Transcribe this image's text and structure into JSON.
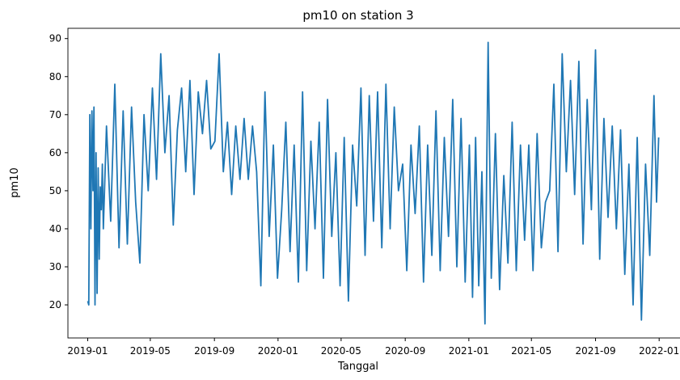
{
  "chart_data": {
    "type": "line",
    "title": "pm10 on station 3",
    "xlabel": "Tanggal",
    "ylabel": "pm10",
    "xlim": [
      "2018-11-24",
      "2022-02-10"
    ],
    "ylim": [
      11.3,
      92.7
    ],
    "grid": false,
    "x_ticks": [
      "2019-01",
      "2019-05",
      "2019-09",
      "2020-01",
      "2020-05",
      "2020-09",
      "2021-01",
      "2021-05",
      "2021-09",
      "2022-01"
    ],
    "y_ticks": [
      20,
      30,
      40,
      50,
      60,
      70,
      80,
      90
    ],
    "series": [
      {
        "color": "#1f77b4",
        "x": [
          "2019-01-01",
          "2019-01-03",
          "2019-01-05",
          "2019-01-07",
          "2019-01-09",
          "2019-01-11",
          "2019-01-13",
          "2019-01-15",
          "2019-01-17",
          "2019-01-19",
          "2019-01-21",
          "2019-01-23",
          "2019-01-25",
          "2019-01-27",
          "2019-01-29",
          "2019-01-31",
          "2019-02-06",
          "2019-02-14",
          "2019-02-22",
          "2019-03-02",
          "2019-03-10",
          "2019-03-18",
          "2019-03-26",
          "2019-04-03",
          "2019-04-11",
          "2019-04-19",
          "2019-04-27",
          "2019-05-05",
          "2019-05-13",
          "2019-05-21",
          "2019-05-29",
          "2019-06-06",
          "2019-06-14",
          "2019-06-22",
          "2019-06-30",
          "2019-07-08",
          "2019-07-16",
          "2019-07-24",
          "2019-08-01",
          "2019-08-09",
          "2019-08-17",
          "2019-08-25",
          "2019-09-02",
          "2019-09-10",
          "2019-09-18",
          "2019-09-26",
          "2019-10-04",
          "2019-10-12",
          "2019-10-20",
          "2019-10-28",
          "2019-11-05",
          "2019-11-13",
          "2019-11-21",
          "2019-11-29",
          "2019-12-07",
          "2019-12-15",
          "2019-12-23",
          "2019-12-31",
          "2020-01-08",
          "2020-01-16",
          "2020-01-24",
          "2020-02-01",
          "2020-02-09",
          "2020-02-17",
          "2020-02-25",
          "2020-03-04",
          "2020-03-12",
          "2020-03-20",
          "2020-03-28",
          "2020-04-05",
          "2020-04-13",
          "2020-04-21",
          "2020-04-29",
          "2020-05-07",
          "2020-05-15",
          "2020-05-23",
          "2020-05-31",
          "2020-06-08",
          "2020-06-16",
          "2020-06-24",
          "2020-07-02",
          "2020-07-10",
          "2020-07-18",
          "2020-07-26",
          "2020-08-03",
          "2020-08-11",
          "2020-08-19",
          "2020-08-27",
          "2020-09-04",
          "2020-09-12",
          "2020-09-20",
          "2020-09-28",
          "2020-10-06",
          "2020-10-14",
          "2020-10-22",
          "2020-10-30",
          "2020-11-07",
          "2020-11-15",
          "2020-11-23",
          "2020-12-01",
          "2020-12-09",
          "2020-12-17",
          "2020-12-25",
          "2021-01-02",
          "2021-01-08",
          "2021-01-14",
          "2021-01-20",
          "2021-01-26",
          "2021-02-01",
          "2021-02-07",
          "2021-02-13",
          "2021-02-21",
          "2021-03-01",
          "2021-03-09",
          "2021-03-17",
          "2021-03-25",
          "2021-04-02",
          "2021-04-10",
          "2021-04-18",
          "2021-04-26",
          "2021-05-04",
          "2021-05-12",
          "2021-05-20",
          "2021-05-28",
          "2021-06-05",
          "2021-06-13",
          "2021-06-21",
          "2021-06-29",
          "2021-07-07",
          "2021-07-15",
          "2021-07-23",
          "2021-07-31",
          "2021-08-08",
          "2021-08-16",
          "2021-08-24",
          "2021-09-01",
          "2021-09-09",
          "2021-09-17",
          "2021-09-25",
          "2021-10-03",
          "2021-10-11",
          "2021-10-19",
          "2021-10-27",
          "2021-11-04",
          "2021-11-12",
          "2021-11-20",
          "2021-11-28",
          "2021-12-06",
          "2021-12-14",
          "2021-12-22",
          "2021-12-27",
          "2021-12-31"
        ],
        "y": [
          21,
          20,
          70,
          40,
          71,
          50,
          72,
          20,
          60,
          23,
          56,
          32,
          51,
          45,
          57,
          40,
          67,
          42,
          78,
          35,
          71,
          36,
          72,
          47,
          31,
          70,
          50,
          77,
          53,
          86,
          60,
          75,
          41,
          66,
          77,
          55,
          79,
          49,
          76,
          65,
          79,
          61,
          63,
          86,
          55,
          68,
          49,
          67,
          53,
          69,
          53,
          67,
          55,
          25,
          76,
          38,
          62,
          27,
          45,
          68,
          34,
          62,
          26,
          76,
          29,
          63,
          40,
          68,
          27,
          74,
          38,
          60,
          25,
          64,
          21,
          62,
          46,
          77,
          33,
          75,
          42,
          76,
          35,
          78,
          40,
          72,
          50,
          57,
          29,
          62,
          44,
          67,
          26,
          62,
          33,
          71,
          29,
          64,
          38,
          74,
          30,
          69,
          26,
          62,
          22,
          64,
          25,
          55,
          15,
          89,
          27,
          65,
          24,
          54,
          31,
          68,
          29,
          62,
          37,
          62,
          29,
          65,
          35,
          47,
          50,
          78,
          34,
          86,
          55,
          79,
          49,
          84,
          36,
          74,
          45,
          87,
          32,
          69,
          43,
          67,
          40,
          66,
          28,
          57,
          20,
          64,
          16,
          57,
          33,
          75,
          47,
          64
        ]
      }
    ]
  }
}
